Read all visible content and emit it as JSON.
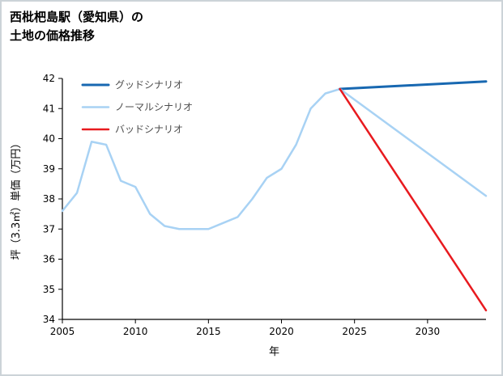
{
  "page": {
    "title_line1": "西枇杷島駅（愛知県）の",
    "title_line2": "土地の価格推移"
  },
  "chart_data": {
    "type": "line",
    "title": "西枇杷島駅（愛知県）の土地の価格推移",
    "xlabel": "年",
    "ylabel": "坪（3.3㎡）単価（万円）",
    "xlim": [
      2005,
      2034
    ],
    "ylim": [
      34,
      42
    ],
    "x_ticks": [
      2005,
      2010,
      2015,
      2020,
      2025,
      2030
    ],
    "y_ticks": [
      34,
      35,
      36,
      37,
      38,
      39,
      40,
      41,
      42
    ],
    "grid": false,
    "legend_position": "upper-left",
    "legend": [
      {
        "label": "グッドシナリオ",
        "color": "#1868b1",
        "width": 3
      },
      {
        "label": "ノーマルシナリオ",
        "color": "#a8d2f4",
        "width": 2.5
      },
      {
        "label": "バッドシナリオ",
        "color": "#e81a1f",
        "width": 2.5
      }
    ],
    "series": [
      {
        "name": "historical",
        "color": "#a8d2f4",
        "width": 2.5,
        "x": [
          2005,
          2006,
          2007,
          2008,
          2009,
          2010,
          2011,
          2012,
          2013,
          2014,
          2015,
          2016,
          2017,
          2018,
          2019,
          2020,
          2021,
          2022,
          2023,
          2024
        ],
        "values": [
          37.6,
          38.2,
          39.9,
          39.8,
          38.6,
          38.4,
          37.5,
          37.1,
          37.0,
          37.0,
          37.0,
          37.2,
          37.4,
          38.0,
          38.7,
          39.0,
          39.8,
          41.0,
          41.5,
          41.65
        ]
      },
      {
        "name": "good-scenario",
        "color": "#1868b1",
        "width": 3,
        "x": [
          2024,
          2034
        ],
        "values": [
          41.65,
          41.9
        ]
      },
      {
        "name": "normal-scenario",
        "color": "#a8d2f4",
        "width": 2.5,
        "x": [
          2024,
          2034
        ],
        "values": [
          41.65,
          38.1
        ]
      },
      {
        "name": "bad-scenario",
        "color": "#e81a1f",
        "width": 2.5,
        "x": [
          2024,
          2034
        ],
        "values": [
          41.65,
          34.3
        ]
      }
    ]
  }
}
